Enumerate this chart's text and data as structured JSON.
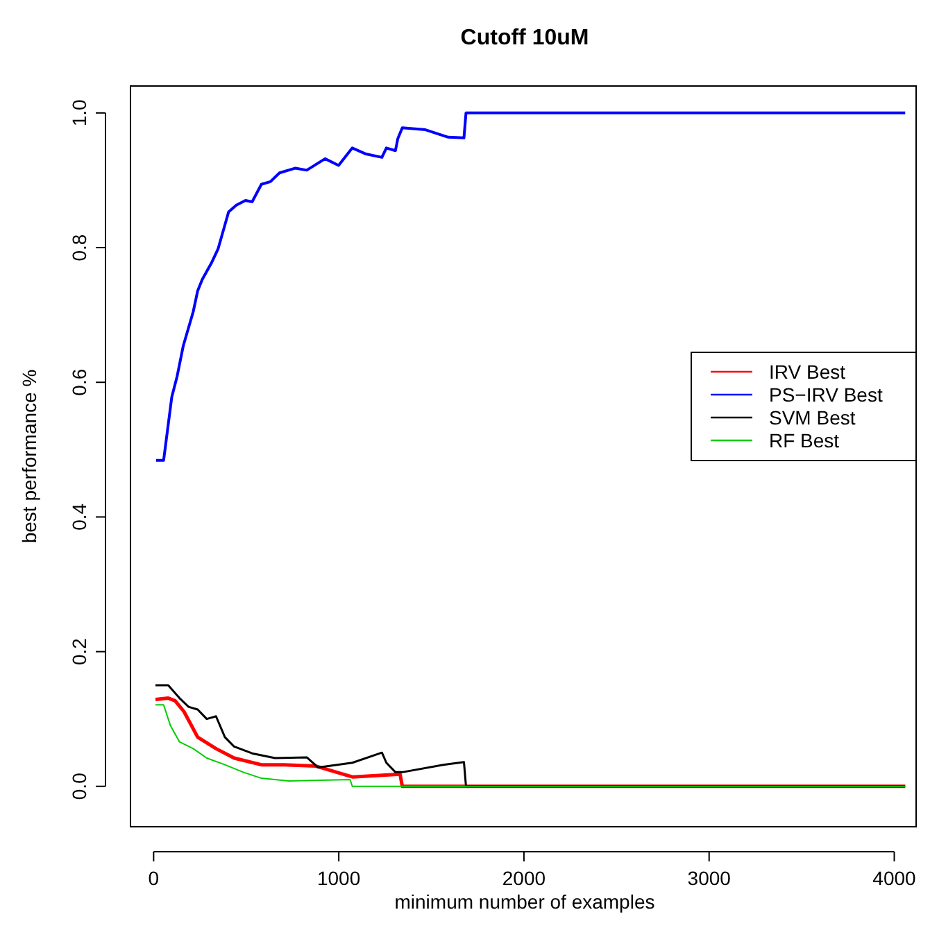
{
  "chart_data": {
    "type": "line",
    "title": "Cutoff 10uM",
    "xlabel": "minimum number of examples",
    "ylabel": "best performance %",
    "xlim": [
      -125,
      4118
    ],
    "ylim": [
      -0.06,
      1.04
    ],
    "xticks": [
      0,
      1000,
      2000,
      3000,
      4000
    ],
    "yticks": [
      {
        "value": 0,
        "label": "0.0"
      },
      {
        "value": 0.2,
        "label": "0.2"
      },
      {
        "value": 0.4,
        "label": "0.4"
      },
      {
        "value": 0.6,
        "label": "0.6"
      },
      {
        "value": 0.8,
        "label": "0.8"
      },
      {
        "value": 1,
        "label": "1.0"
      }
    ],
    "grid": false,
    "legend": "right",
    "marker": "none",
    "line_style": "solid",
    "series": [
      {
        "name": "IRV Best",
        "color": "#ff0000",
        "x": [
          10,
          79,
          116,
          164,
          238,
          337,
          435,
          582,
          705,
          877,
          1073,
          1331,
          1343,
          4059
        ],
        "values": [
          0.129,
          0.131,
          0.127,
          0.111,
          0.073,
          0.056,
          0.042,
          0.032,
          0.032,
          0.03,
          0.014,
          0.018,
          0,
          0
        ]
      },
      {
        "name": "PS−IRV Best",
        "color": "#0000ff",
        "x": [
          13,
          54,
          98,
          127,
          160,
          214,
          238,
          263,
          312,
          348,
          405,
          447,
          496,
          532,
          582,
          631,
          680,
          766,
          827,
          926,
          999,
          1073,
          1147,
          1233,
          1257,
          1306,
          1319,
          1343,
          1468,
          1591,
          1676,
          1687,
          4059
        ],
        "values": [
          0.484,
          0.484,
          0.578,
          0.609,
          0.654,
          0.705,
          0.736,
          0.753,
          0.777,
          0.798,
          0.853,
          0.863,
          0.87,
          0.868,
          0.894,
          0.898,
          0.911,
          0.918,
          0.915,
          0.932,
          0.922,
          0.948,
          0.939,
          0.934,
          0.948,
          0.944,
          0.962,
          0.978,
          0.975,
          0.964,
          0.963,
          1.0,
          1.0
        ]
      },
      {
        "name": "SVM Best",
        "color": "#000000",
        "x": [
          10,
          79,
          140,
          189,
          238,
          287,
          337,
          385,
          435,
          532,
          656,
          827,
          889,
          1073,
          1233,
          1257,
          1306,
          1343,
          1564,
          1676,
          1687,
          4059
        ],
        "values": [
          0.15,
          0.15,
          0.131,
          0.118,
          0.114,
          0.1,
          0.104,
          0.073,
          0.059,
          0.049,
          0.042,
          0.043,
          0.028,
          0.035,
          0.05,
          0.035,
          0.021,
          0.021,
          0.032,
          0.036,
          0,
          0
        ]
      },
      {
        "name": "RF Best",
        "color": "#00cd00",
        "x": [
          10,
          54,
          91,
          140,
          214,
          287,
          385,
          484,
          582,
          729,
          1061,
          1073,
          4059
        ],
        "values": [
          0.121,
          0.121,
          0.09,
          0.066,
          0.056,
          0.042,
          0.032,
          0.021,
          0.012,
          0.008,
          0.01,
          0,
          0
        ]
      }
    ]
  }
}
